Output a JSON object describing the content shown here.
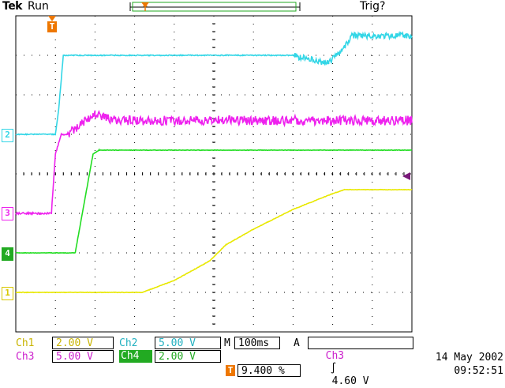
{
  "header": {
    "brand": "Tek",
    "run_state": "Run",
    "trigger_state": "Trig?"
  },
  "markers": {
    "trigger_position": "T",
    "ch2": "2",
    "ch3": "3",
    "ch4": "4",
    "ch1": "1"
  },
  "status": {
    "ch1_label": "Ch1",
    "ch1_scale": "2.00 V",
    "ch2_label": "Ch2",
    "ch2_scale": "5.00 V",
    "ch3_label": "Ch3",
    "ch3_scale": "5.00 V",
    "ch4_label": "Ch4",
    "ch4_scale": "2.00 V",
    "timebase_prefix": "M",
    "timebase": "100ms",
    "trigger_mode": "A",
    "trigger_source": "Ch3",
    "trigger_slope": "∫",
    "trigger_level": "4.60 V",
    "trigger_offset_marker": "T",
    "trigger_offset": "9.400 %"
  },
  "datestamp": {
    "date": "14 May 2002",
    "time": "09:52:51"
  },
  "colors": {
    "ch1": "#e8e800",
    "ch2": "#33d6e6",
    "ch3": "#ee22ee",
    "ch4": "#22dd22",
    "trigger": "#ee7700",
    "grid": "#000000"
  },
  "chart_data": {
    "type": "line",
    "x_divisions": 10,
    "y_divisions": 8,
    "x_unit": "div",
    "y_unit": "div",
    "series": [
      {
        "name": "Ch2",
        "x": [
          0,
          1.0,
          1.08,
          1.2,
          7.0,
          7.4,
          7.9,
          8.3,
          8.5,
          10
        ],
        "y": [
          5.0,
          5.0,
          5.6,
          7.0,
          7.0,
          6.9,
          6.8,
          7.2,
          7.5,
          7.5
        ]
      },
      {
        "name": "Ch3",
        "x": [
          0,
          0.9,
          1.0,
          1.15,
          1.3,
          2.0,
          2.5,
          10
        ],
        "y": [
          3.0,
          3.0,
          4.5,
          5.0,
          5.0,
          5.5,
          5.35,
          5.35
        ]
      },
      {
        "name": "Ch4",
        "x": [
          0,
          1.5,
          1.95,
          2.1,
          10
        ],
        "y": [
          2.0,
          2.0,
          4.5,
          4.6,
          4.6
        ]
      },
      {
        "name": "Ch1",
        "x": [
          0,
          3.2,
          4.0,
          4.9,
          5.3,
          6.0,
          7.0,
          8.0,
          8.3,
          10
        ],
        "y": [
          1.0,
          1.0,
          1.3,
          1.8,
          2.2,
          2.6,
          3.1,
          3.5,
          3.6,
          3.6
        ]
      }
    ]
  }
}
